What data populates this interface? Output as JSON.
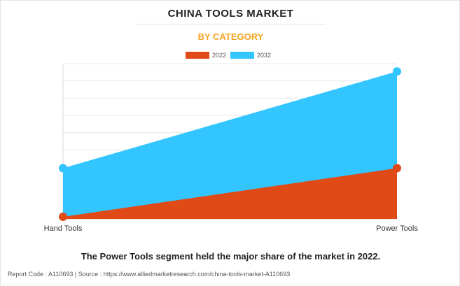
{
  "title": "CHINA TOOLS MARKET",
  "subtitle": "BY CATEGORY",
  "headline": "The Power Tools segment held the major share of the market in 2022.",
  "source": "Report Code : A110693  |  Source : https://www.alliedmarketresearch.com/china-tools-market-A110693",
  "colors": {
    "series_2022": "#e04a16",
    "series_2032": "#33c5ff",
    "title": "#222222",
    "subtitle": "#f5a623",
    "grid": "#e8e8e8"
  },
  "chart_data": {
    "type": "area",
    "title": "CHINA TOOLS MARKET",
    "subtitle": "BY CATEGORY",
    "categories": [
      "Hand Tools",
      "Power Tools"
    ],
    "series": [
      {
        "name": "2022",
        "values": [
          0.4,
          9.8
        ]
      },
      {
        "name": "2032",
        "values": [
          9.8,
          28.5
        ]
      }
    ],
    "ylim": [
      0,
      30
    ],
    "grid": true,
    "legend": "top-center",
    "xlabel": "",
    "ylabel": ""
  }
}
